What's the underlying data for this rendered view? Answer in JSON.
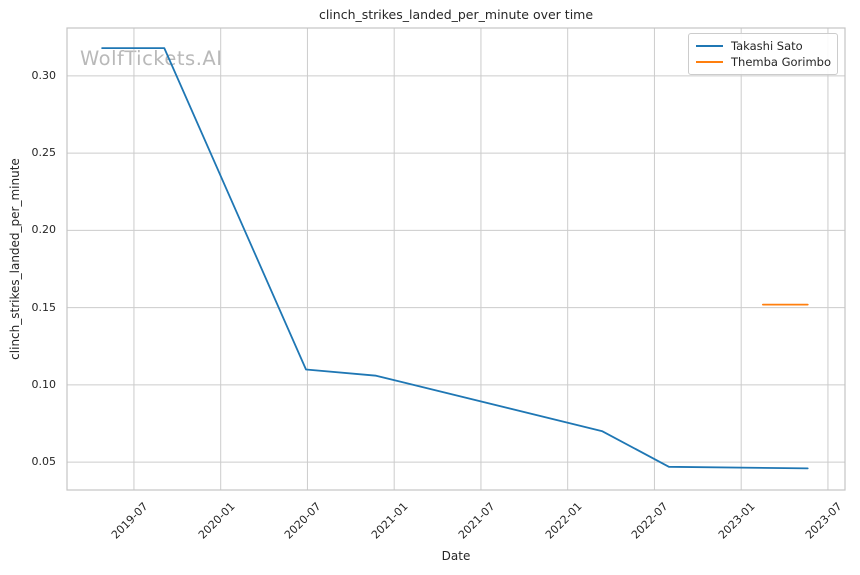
{
  "chart_data": {
    "type": "line",
    "title": "clinch_strikes_landed_per_minute over time",
    "xlabel": "Date",
    "ylabel": "clinch_strikes_landed_per_minute",
    "watermark": "WolfTickets.AI",
    "grid": true,
    "legend_position": "upper right",
    "background_color": "#ffffff",
    "grid_color": "#cccccc",
    "spine_color": "#c4c4c4",
    "text_color": "#262626",
    "x_axis": {
      "unit": "months_since_2019_01",
      "min_t": 1.37,
      "max_t": 55.18,
      "ticks": [
        {
          "t": 6,
          "label": "2019-07"
        },
        {
          "t": 12,
          "label": "2020-01"
        },
        {
          "t": 18,
          "label": "2020-07"
        },
        {
          "t": 24,
          "label": "2021-01"
        },
        {
          "t": 30,
          "label": "2021-07"
        },
        {
          "t": 36,
          "label": "2022-01"
        },
        {
          "t": 42,
          "label": "2022-07"
        },
        {
          "t": 48,
          "label": "2023-01"
        },
        {
          "t": 54,
          "label": "2023-07"
        }
      ]
    },
    "y_axis": {
      "min": 0.032,
      "max": 0.331,
      "ticks": [
        {
          "v": 0.05,
          "label": "0.05"
        },
        {
          "v": 0.1,
          "label": "0.10"
        },
        {
          "v": 0.15,
          "label": "0.15"
        },
        {
          "v": 0.2,
          "label": "0.20"
        },
        {
          "v": 0.25,
          "label": "0.25"
        },
        {
          "v": 0.3,
          "label": "0.30"
        }
      ]
    },
    "series": [
      {
        "name": "Takashi Sato",
        "color": "#1f77b4",
        "points": [
          {
            "date": "2019-05",
            "t": 3.8,
            "value": 0.318
          },
          {
            "date": "2019-09",
            "t": 8.1,
            "value": 0.318
          },
          {
            "date": "2020-07",
            "t": 17.9,
            "value": 0.11
          },
          {
            "date": "2020-12",
            "t": 22.75,
            "value": 0.106
          },
          {
            "date": "2022-03",
            "t": 38.4,
            "value": 0.07
          },
          {
            "date": "2022-08",
            "t": 43.0,
            "value": 0.047
          },
          {
            "date": "2023-05",
            "t": 52.6,
            "value": 0.046
          }
        ]
      },
      {
        "name": "Themba Gorimbo",
        "color": "#ff7f0e",
        "points": [
          {
            "date": "2023-02",
            "t": 49.5,
            "value": 0.152
          },
          {
            "date": "2023-05",
            "t": 52.6,
            "value": 0.152
          }
        ]
      }
    ]
  }
}
